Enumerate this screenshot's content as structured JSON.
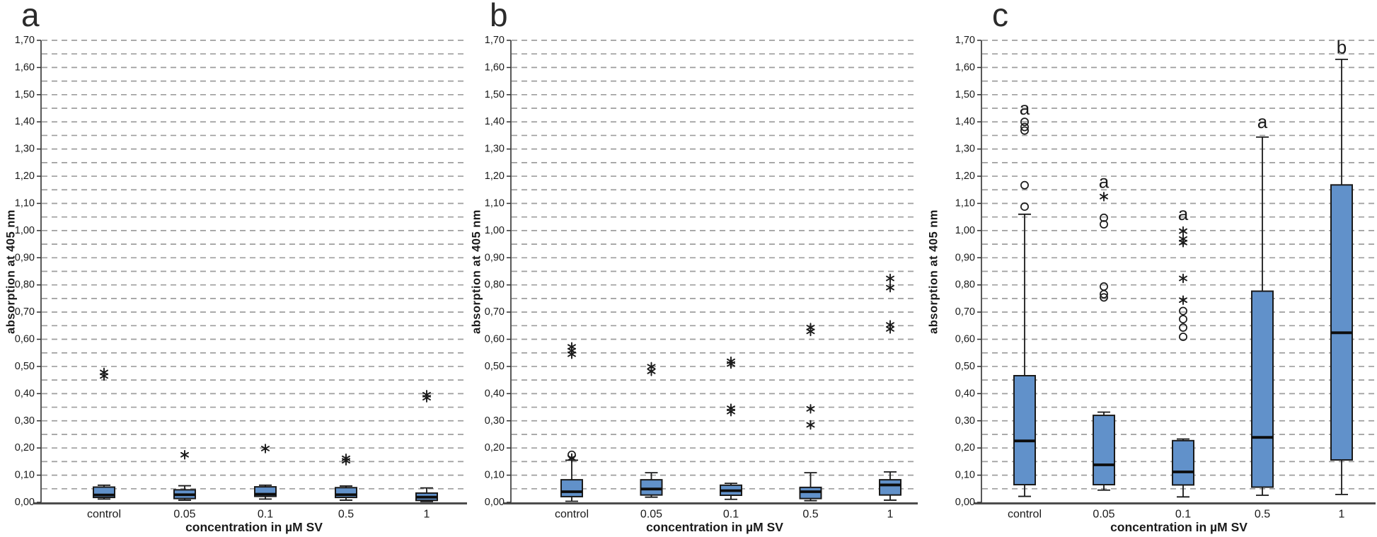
{
  "figure": {
    "background": "#ffffff",
    "y_axis": {
      "label": "absorption at 405 nm",
      "min": 0,
      "max": 1.7,
      "tick_step": 0.1,
      "grid_step": 0.05,
      "tick_labels": [
        "0,00",
        "0,10",
        "0,20",
        "0,30",
        "0,40",
        "0,50",
        "0,60",
        "0,70",
        "0,80",
        "0,90",
        "1,00",
        "1,10",
        "1,20",
        "1,30",
        "1,40",
        "1,50",
        "1,60",
        "1,70"
      ]
    },
    "x_axis": {
      "label": "concentration in µM SV",
      "categories": [
        "control",
        "0.05",
        "0.1",
        "0.5",
        "1"
      ]
    },
    "colors": {
      "box_fill": "#6191ca",
      "box_stroke": "#1a1a1a",
      "median": "#0d0d0d",
      "grid": "#9e9e9e",
      "axis": "#4d4d4d",
      "text": "#1a1a1a"
    }
  },
  "chart_data": [
    {
      "panel": "a",
      "type": "box",
      "title": "a",
      "xlabel": "concentration in µM SV",
      "ylabel": "absorption at 405 nm",
      "ylim": [
        0,
        1.7
      ],
      "grid": true,
      "categories": [
        "control",
        "0.05",
        "0.1",
        "0.5",
        "1"
      ],
      "boxes": [
        {
          "category": "control",
          "whisker_low": 0.012,
          "q1": 0.018,
          "median": 0.027,
          "q3": 0.056,
          "whisker_high": 0.063,
          "outliers_star": [
            0.465,
            0.478
          ],
          "outliers_circle": []
        },
        {
          "category": "0.05",
          "whisker_low": 0.008,
          "q1": 0.014,
          "median": 0.028,
          "q3": 0.046,
          "whisker_high": 0.061,
          "outliers_star": [
            0.175
          ],
          "outliers_circle": []
        },
        {
          "category": "0.1",
          "whisker_low": 0.012,
          "q1": 0.022,
          "median": 0.03,
          "q3": 0.057,
          "whisker_high": 0.063,
          "outliers_star": [
            0.198
          ],
          "outliers_circle": []
        },
        {
          "category": "0.5",
          "whisker_low": 0.008,
          "q1": 0.018,
          "median": 0.028,
          "q3": 0.054,
          "whisker_high": 0.06,
          "outliers_star": [
            0.153,
            0.162
          ],
          "outliers_circle": []
        },
        {
          "category": "1",
          "whisker_low": 0.003,
          "q1": 0.007,
          "median": 0.019,
          "q3": 0.034,
          "whisker_high": 0.053,
          "outliers_star": [
            0.385,
            0.396
          ],
          "outliers_circle": []
        }
      ]
    },
    {
      "panel": "b",
      "type": "box",
      "title": "b",
      "xlabel": "concentration in µM SV",
      "ylabel": "absorption at 405 nm",
      "ylim": [
        0,
        1.7
      ],
      "grid": true,
      "categories": [
        "control",
        "0.05",
        "0.1",
        "0.5",
        "1"
      ],
      "boxes": [
        {
          "category": "control",
          "whisker_low": 0.004,
          "q1": 0.021,
          "median": 0.039,
          "q3": 0.083,
          "whisker_high": 0.155,
          "outliers_star": [
            0.163,
            0.545,
            0.558,
            0.572
          ],
          "outliers_circle": [
            0.175
          ]
        },
        {
          "category": "0.05",
          "whisker_low": 0.019,
          "q1": 0.027,
          "median": 0.049,
          "q3": 0.083,
          "whisker_high": 0.109,
          "outliers_star": [
            0.482,
            0.499
          ],
          "outliers_circle": []
        },
        {
          "category": "0.1",
          "whisker_low": 0.011,
          "q1": 0.026,
          "median": 0.043,
          "q3": 0.063,
          "whisker_high": 0.07,
          "outliers_star": [
            0.334,
            0.346,
            0.509,
            0.519
          ],
          "outliers_circle": []
        },
        {
          "category": "0.5",
          "whisker_low": 0.006,
          "q1": 0.014,
          "median": 0.039,
          "q3": 0.055,
          "whisker_high": 0.109,
          "outliers_star": [
            0.285,
            0.344,
            0.629,
            0.643
          ],
          "outliers_circle": []
        },
        {
          "category": "1",
          "whisker_low": 0.008,
          "q1": 0.027,
          "median": 0.064,
          "q3": 0.083,
          "whisker_high": 0.112,
          "outliers_star": [
            0.638,
            0.653,
            0.79,
            0.824
          ],
          "outliers_circle": []
        }
      ]
    },
    {
      "panel": "c",
      "type": "box",
      "title": "c",
      "xlabel": "concentration in µM SV",
      "ylabel": "absorption at 405 nm",
      "ylim": [
        0,
        1.7
      ],
      "grid": true,
      "categories": [
        "control",
        "0.05",
        "0.1",
        "0.5",
        "1"
      ],
      "boxes": [
        {
          "category": "control",
          "whisker_low": 0.022,
          "q1": 0.065,
          "median": 0.226,
          "q3": 0.466,
          "whisker_high": 1.06,
          "outliers_star": [],
          "outliers_circle": [
            1.088,
            1.167,
            1.368,
            1.381,
            1.4
          ],
          "sig_letter": "a",
          "sig_letter_y": 1.45
        },
        {
          "category": "0.05",
          "whisker_low": 0.045,
          "q1": 0.065,
          "median": 0.138,
          "q3": 0.32,
          "whisker_high": 0.332,
          "outliers_star": [
            1.125
          ],
          "outliers_circle": [
            0.754,
            0.766,
            0.794,
            1.023,
            1.047
          ],
          "sig_letter": "a",
          "sig_letter_y": 1.18
        },
        {
          "category": "0.1",
          "whisker_low": 0.02,
          "q1": 0.064,
          "median": 0.112,
          "q3": 0.227,
          "whisker_high": 0.233,
          "outliers_star": [
            0.744,
            0.824,
            0.956,
            0.969,
            0.998
          ],
          "outliers_circle": [
            0.609,
            0.643,
            0.674,
            0.704
          ],
          "sig_letter": "a",
          "sig_letter_y": 1.062
        },
        {
          "category": "0.5",
          "whisker_low": 0.026,
          "q1": 0.056,
          "median": 0.239,
          "q3": 0.777,
          "whisker_high": 1.344,
          "outliers_star": [],
          "outliers_circle": [],
          "sig_letter": "a",
          "sig_letter_y": 1.4
        },
        {
          "category": "1",
          "whisker_low": 0.029,
          "q1": 0.156,
          "median": 0.624,
          "q3": 1.168,
          "whisker_high": 1.63,
          "outliers_star": [],
          "outliers_circle": [],
          "sig_letter": "b",
          "sig_letter_y": 1.675
        }
      ]
    }
  ]
}
